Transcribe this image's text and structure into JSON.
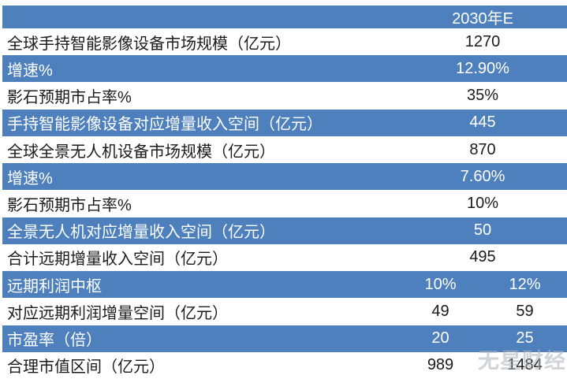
{
  "chart_data": {
    "type": "table",
    "title": "",
    "header": {
      "label": "",
      "year_label": "2030年E"
    },
    "rows": [
      {
        "label": "全球手持智能影像设备市场规模（亿元）",
        "values": [
          "1270"
        ],
        "highlight": false
      },
      {
        "label": "增速%",
        "values": [
          "12.90%"
        ],
        "highlight": true
      },
      {
        "label": "影石预期市占率%",
        "values": [
          "35%"
        ],
        "highlight": false
      },
      {
        "label": "手持智能影像设备对应增量收入空间（亿元）",
        "values": [
          "445"
        ],
        "highlight": true
      },
      {
        "label": "全球全景无人机设备市场规模（亿元）",
        "values": [
          "870"
        ],
        "highlight": false
      },
      {
        "label": "增速%",
        "values": [
          "7.60%"
        ],
        "highlight": true
      },
      {
        "label": "影石预期市占率%",
        "values": [
          "10%"
        ],
        "highlight": false
      },
      {
        "label": "全景无人机对应增量收入空间（亿元）",
        "values": [
          "50"
        ],
        "highlight": true
      },
      {
        "label": "合计远期增量收入空间（亿元）",
        "values": [
          "495"
        ],
        "highlight": false
      },
      {
        "label": "远期利润中枢",
        "values": [
          "10%",
          "12%"
        ],
        "highlight": true
      },
      {
        "label": "对应远期利润增量空间（亿元）",
        "values": [
          "49",
          "59"
        ],
        "highlight": false
      },
      {
        "label": "市盈率（倍）",
        "values": [
          "20",
          "25"
        ],
        "highlight": true
      },
      {
        "label": "合理市值区间（亿元）",
        "values": [
          "989",
          "1484"
        ],
        "highlight": false
      }
    ]
  },
  "watermark": "无星财经",
  "colors": {
    "row_blue": "#4e80bd",
    "text_dark": "#1b1b1b",
    "text_light": "#ffffff"
  }
}
